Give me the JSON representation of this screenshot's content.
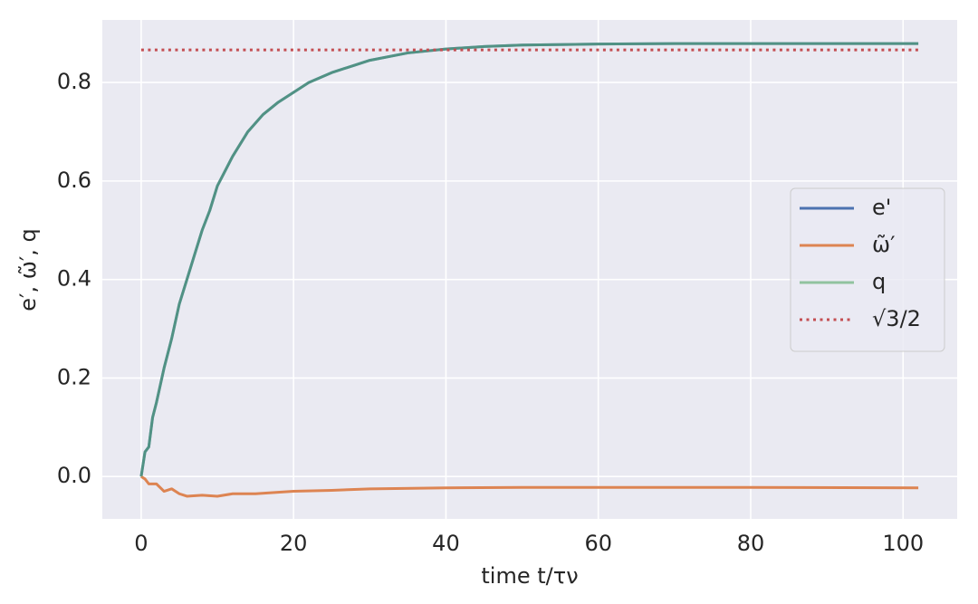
{
  "chart_data": {
    "type": "line",
    "x_label": "time t/τν",
    "y_label": "e′, ω̃′, q",
    "xlim": [
      -5.1,
      107.1
    ],
    "ylim": [
      -0.086,
      0.927
    ],
    "xticks": [
      0,
      20,
      40,
      60,
      80,
      100
    ],
    "yticks": [
      {
        "value": 0,
        "label": "0.0"
      },
      0.2,
      0.4,
      0.6,
      0.8
    ],
    "grid": true,
    "legend": "center right",
    "series": [
      {
        "name": "e'",
        "color": "#4c72b0",
        "x": [
          0,
          0.5,
          1,
          1.5,
          2,
          3,
          4,
          5,
          6,
          7,
          8,
          9,
          10,
          12,
          14,
          16,
          18,
          20,
          22,
          25,
          28,
          30,
          35,
          40,
          45,
          50,
          60,
          70,
          80,
          90,
          102
        ],
        "values": [
          0,
          0.05,
          0.06,
          0.12,
          0.15,
          0.22,
          0.28,
          0.35,
          0.4,
          0.45,
          0.5,
          0.54,
          0.59,
          0.65,
          0.7,
          0.735,
          0.76,
          0.78,
          0.8,
          0.82,
          0.835,
          0.845,
          0.86,
          0.868,
          0.873,
          0.876,
          0.878,
          0.879,
          0.879,
          0.879,
          0.879
        ]
      },
      {
        "name": "ω̃′",
        "color": "#dd8452",
        "x": [
          0,
          0.5,
          1,
          2,
          3,
          4,
          5,
          6,
          8,
          10,
          12,
          15,
          20,
          25,
          30,
          40,
          50,
          60,
          80,
          102
        ],
        "values": [
          0,
          -0.005,
          -0.015,
          -0.015,
          -0.03,
          -0.025,
          -0.035,
          -0.04,
          -0.038,
          -0.04,
          -0.035,
          -0.035,
          -0.03,
          -0.028,
          -0.025,
          -0.023,
          -0.022,
          -0.022,
          -0.022,
          -0.023
        ]
      },
      {
        "name": "q",
        "color": "#55a868",
        "x": [
          0,
          0.5,
          1,
          1.5,
          2,
          3,
          4,
          5,
          6,
          7,
          8,
          9,
          10,
          12,
          14,
          16,
          18,
          20,
          22,
          25,
          28,
          30,
          35,
          40,
          45,
          50,
          60,
          70,
          80,
          90,
          102
        ],
        "values": [
          0,
          0.05,
          0.06,
          0.12,
          0.15,
          0.22,
          0.28,
          0.35,
          0.4,
          0.45,
          0.5,
          0.54,
          0.59,
          0.65,
          0.7,
          0.735,
          0.76,
          0.78,
          0.8,
          0.82,
          0.835,
          0.845,
          0.86,
          0.868,
          0.873,
          0.876,
          0.878,
          0.879,
          0.879,
          0.879,
          0.879
        ]
      },
      {
        "name": "√3/2",
        "color": "#c44e52",
        "style": "dotted",
        "x": [
          0,
          102
        ],
        "values": [
          0.866,
          0.866
        ]
      }
    ]
  }
}
